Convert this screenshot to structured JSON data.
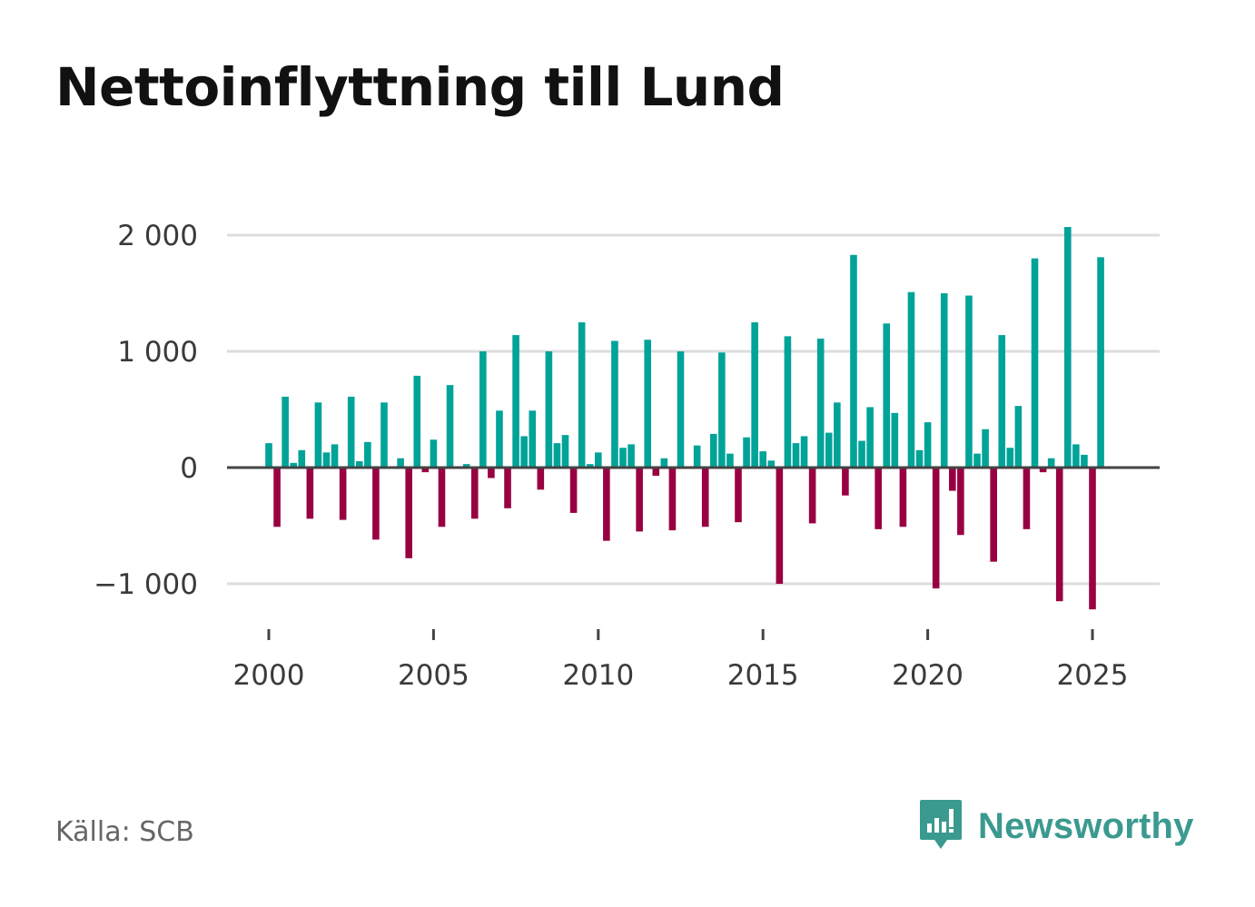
{
  "header": {
    "title": "Nettoinflyttning till Lund"
  },
  "footer": {
    "source": "Källa: SCB",
    "brand": "Newsworthy"
  },
  "colors": {
    "positive": "#00A398",
    "negative": "#990041",
    "grid": "#dddddd",
    "zero_line": "#444444"
  },
  "chart_data": {
    "type": "bar",
    "title": "Nettoinflyttning till Lund",
    "xlabel": "",
    "ylabel": "",
    "ylim": [
      -1400,
      2050
    ],
    "xlim": [
      1998.6,
      2026.2
    ],
    "yticks": [
      2000,
      1000,
      0,
      -1000
    ],
    "ytick_labels": [
      "2 000",
      "1 000",
      "0",
      "−1 000"
    ],
    "xticks": [
      2000,
      2005,
      2010,
      2015,
      2020,
      2025
    ],
    "xtick_labels": [
      "2000",
      "2005",
      "2010",
      "2015",
      "2020",
      "2025"
    ],
    "grid": true,
    "period": "quarterly",
    "values": [
      210,
      -510,
      610,
      40,
      150,
      -440,
      560,
      130,
      200,
      -450,
      610,
      55,
      220,
      -620,
      560,
      10,
      80,
      -780,
      790,
      -40,
      240,
      -510,
      710,
      0,
      30,
      -440,
      1000,
      -90,
      490,
      -350,
      1140,
      270,
      490,
      -190,
      1000,
      210,
      280,
      -390,
      1250,
      30,
      130,
      -630,
      1090,
      170,
      200,
      -550,
      1100,
      -70,
      80,
      -540,
      1000,
      0,
      190,
      -510,
      290,
      990,
      120,
      -470,
      260,
      1250,
      140,
      60,
      -1000,
      1130,
      210,
      270,
      -480,
      1110,
      300,
      560,
      -240,
      1830,
      230,
      520,
      -530,
      1240,
      470,
      -510,
      1510,
      150,
      390,
      -1040,
      1500,
      -200,
      -580,
      1480,
      120,
      330,
      -810,
      1140,
      170,
      530,
      -530,
      1800,
      -40,
      80,
      -1150,
      2070,
      200,
      110,
      -1220,
      1810
    ]
  }
}
